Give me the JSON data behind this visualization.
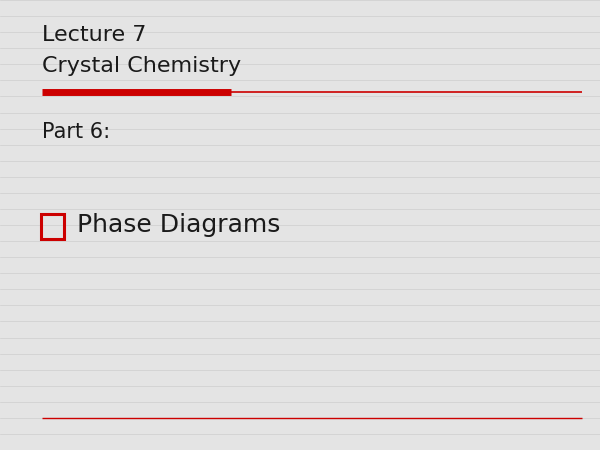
{
  "title_line1": "Lecture 7",
  "title_line2": "Crystal Chemistry",
  "subtitle": "Part 6:",
  "bullet_text": "Phase Diagrams",
  "background_color": "#e4e4e4",
  "title_color": "#1a1a1a",
  "subtitle_color": "#1a1a1a",
  "bullet_color": "#1a1a1a",
  "divider_thick_color": "#cc0000",
  "divider_thin_color": "#cc0000",
  "title_fontsize": 16,
  "subtitle_fontsize": 15,
  "bullet_fontsize": 18,
  "bullet_box_color": "#cc0000",
  "n_hlines": 28
}
